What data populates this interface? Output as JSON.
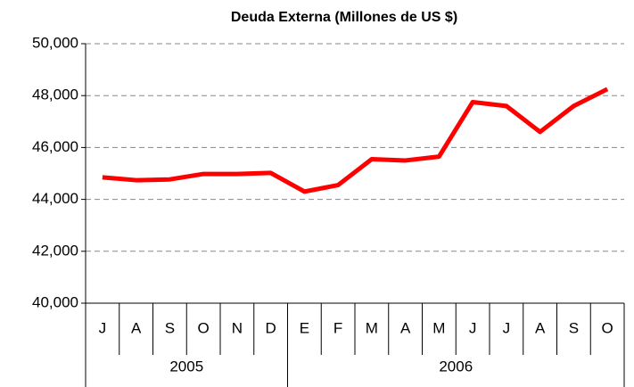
{
  "chart_data": {
    "type": "line",
    "title": "Deuda Externa (Millones de US $)",
    "groups": [
      {
        "name": "2005",
        "categories": [
          "J",
          "A",
          "S",
          "O",
          "N",
          "D"
        ]
      },
      {
        "name": "2006",
        "categories": [
          "E",
          "F",
          "M",
          "A",
          "M",
          "J",
          "J",
          "A",
          "S",
          "O"
        ]
      }
    ],
    "series": [
      {
        "color": "#ff0000",
        "values": [
          44850,
          44740,
          44770,
          44980,
          44980,
          45020,
          44300,
          44550,
          45550,
          45500,
          45650,
          47750,
          47600,
          46600,
          47600,
          48250
        ]
      }
    ],
    "ylim": [
      40000,
      50000
    ],
    "yticks": [
      {
        "value": 40000,
        "label": "40,000"
      },
      {
        "value": 42000,
        "label": "42,000"
      },
      {
        "value": 44000,
        "label": "44,000"
      },
      {
        "value": 46000,
        "label": "46,000"
      },
      {
        "value": 48000,
        "label": "48,000"
      },
      {
        "value": 50000,
        "label": "50,000"
      }
    ],
    "grid": true
  }
}
